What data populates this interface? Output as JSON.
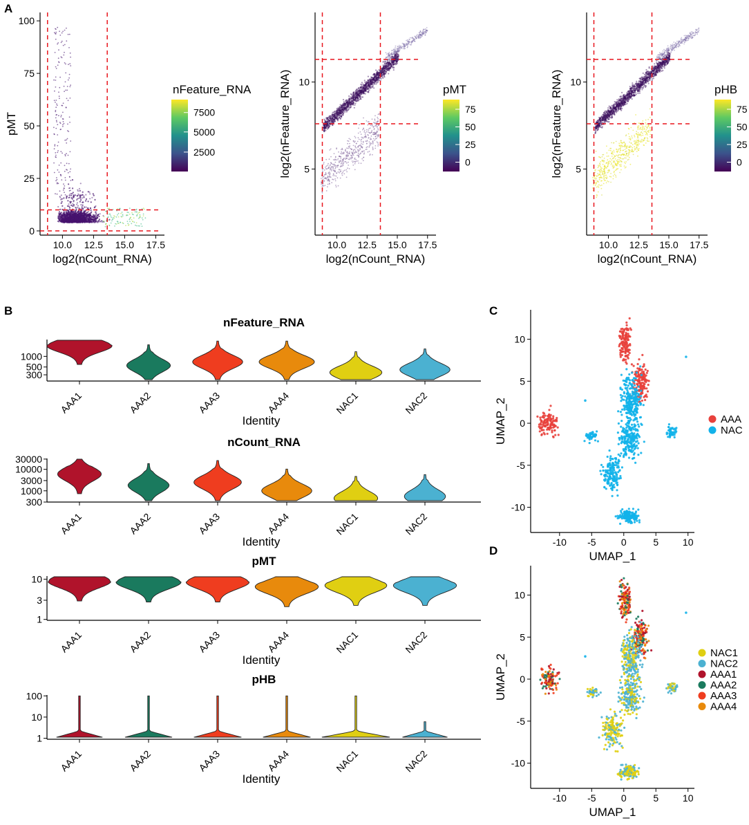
{
  "colors": {
    "AAA1": "#b0132b",
    "AAA2": "#1a7a5e",
    "AAA3": "#ef3d1f",
    "AAA4": "#e88a0c",
    "NAC1": "#e0cf12",
    "NAC2": "#4bb1d1",
    "AAA": "#e8413c",
    "NAC": "#12b2ea",
    "threshold": "#e8141c"
  },
  "panel_letters": [
    "A",
    "B",
    "C",
    "D"
  ],
  "chart_data": [
    {
      "id": "A1",
      "type": "scatter",
      "xlabel": "log2(nCount_RNA)",
      "ylabel": "pMT",
      "xlim": [
        8.2,
        18.2
      ],
      "ylim": [
        -2,
        104
      ],
      "xticks": [
        10.0,
        12.5,
        15.0,
        17.5
      ],
      "xtick_labels": [
        "10.0",
        "12.5",
        "15.0",
        "17.5"
      ],
      "yticks": [
        0,
        25,
        50,
        75,
        100
      ],
      "ytick_labels": [
        "0",
        "25",
        "50",
        "75",
        "100"
      ],
      "thresholds": {
        "v": [
          8.8,
          13.6
        ],
        "h": [
          0,
          10
        ]
      },
      "color_by": "nFeature_RNA",
      "legend": {
        "title": "nFeature_RNA",
        "ticks": [
          "7500",
          "5000",
          "2500"
        ]
      }
    },
    {
      "id": "A2",
      "type": "scatter",
      "xlabel": "log2(nCount_RNA)",
      "ylabel": "log2(nFeature_RNA)",
      "xlim": [
        8.2,
        18.2
      ],
      "ylim": [
        1.2,
        14
      ],
      "xticks": [
        10.0,
        12.5,
        15.0,
        17.5
      ],
      "xtick_labels": [
        "10.0",
        "12.5",
        "15.0",
        "17.5"
      ],
      "yticks": [
        5,
        10
      ],
      "ytick_labels": [
        "5",
        "10"
      ],
      "thresholds": {
        "v": [
          8.8,
          13.6
        ],
        "h": [
          7.6,
          11.3
        ]
      },
      "color_by": "pMT",
      "legend": {
        "title": "pMT",
        "ticks": [
          "75",
          "50",
          "25",
          "0"
        ]
      }
    },
    {
      "id": "A3",
      "type": "scatter",
      "xlabel": "log2(nCount_RNA)",
      "ylabel": "log2(nFeature_RNA)",
      "xlim": [
        8.2,
        18.2
      ],
      "ylim": [
        1.2,
        14
      ],
      "xticks": [
        10.0,
        12.5,
        15.0,
        17.5
      ],
      "xtick_labels": [
        "10.0",
        "12.5",
        "15.0",
        "17.5"
      ],
      "yticks": [
        5,
        10
      ],
      "ytick_labels": [
        "5",
        "10"
      ],
      "thresholds": {
        "v": [
          8.8,
          13.6
        ],
        "h": [
          7.6,
          11.3
        ]
      },
      "color_by": "pHB",
      "legend": {
        "title": "pHB",
        "ticks": [
          "75",
          "50",
          "25",
          "0"
        ]
      }
    },
    {
      "id": "B",
      "type": "violin",
      "categories": [
        "AAA1",
        "AAA2",
        "AAA3",
        "AAA4",
        "NAC1",
        "NAC2"
      ],
      "xlabel": "Identity",
      "subplots": [
        {
          "title": "nFeature_RNA",
          "scale": "log",
          "ylim": [
            200,
            3000
          ],
          "yticks": [
            300,
            500,
            1000
          ],
          "ytick_labels": [
            "300",
            "500",
            "1000"
          ],
          "medians": [
            2000,
            550,
            700,
            700,
            350,
            420
          ]
        },
        {
          "title": "nCount_RNA",
          "scale": "log",
          "ylim": [
            300,
            32000
          ],
          "yticks": [
            300,
            1000,
            3000,
            10000,
            30000
          ],
          "ytick_labels": [
            "300",
            "1000",
            "3000",
            "10000",
            "30000"
          ],
          "medians": [
            6000,
            1800,
            2500,
            1000,
            450,
            550
          ]
        },
        {
          "title": "pMT",
          "scale": "log",
          "ylim": [
            0.95,
            12
          ],
          "yticks": [
            1,
            3,
            10
          ],
          "ytick_labels": [
            "1",
            "3",
            "10"
          ],
          "medians": [
            9,
            8.5,
            8.5,
            6.5,
            7,
            7
          ]
        },
        {
          "title": "pHB",
          "scale": "log",
          "ylim": [
            0.9,
            110
          ],
          "yticks": [
            1,
            10,
            100
          ],
          "ytick_labels": [
            "1",
            "10",
            "100"
          ],
          "medians": [
            1,
            1.1,
            1.1,
            1.2,
            1.5,
            1.05
          ]
        }
      ]
    },
    {
      "id": "C",
      "type": "scatter",
      "xlabel": "UMAP_1",
      "ylabel": "UMAP_2",
      "xlim": [
        -14.5,
        11
      ],
      "ylim": [
        -13,
        13.5
      ],
      "xticks": [
        -10,
        -5,
        0,
        5,
        10
      ],
      "xtick_labels": [
        "-10",
        "-5",
        "0",
        "5",
        "10"
      ],
      "yticks": [
        -10,
        -5,
        0,
        5,
        10
      ],
      "ytick_labels": [
        "-10",
        "-5",
        "0",
        "5",
        "10"
      ],
      "legend": {
        "entries": [
          "AAA",
          "NAC"
        ]
      }
    },
    {
      "id": "D",
      "type": "scatter",
      "xlabel": "UMAP_1",
      "ylabel": "UMAP_2",
      "xlim": [
        -14.5,
        11
      ],
      "ylim": [
        -13,
        13.5
      ],
      "xticks": [
        -10,
        -5,
        0,
        5,
        10
      ],
      "xtick_labels": [
        "-10",
        "-5",
        "0",
        "5",
        "10"
      ],
      "yticks": [
        -10,
        -5,
        0,
        5,
        10
      ],
      "ytick_labels": [
        "-10",
        "-5",
        "0",
        "5",
        "10"
      ],
      "legend": {
        "entries": [
          "NAC1",
          "NAC2",
          "AAA1",
          "AAA2",
          "AAA3",
          "AAA4"
        ]
      }
    }
  ]
}
